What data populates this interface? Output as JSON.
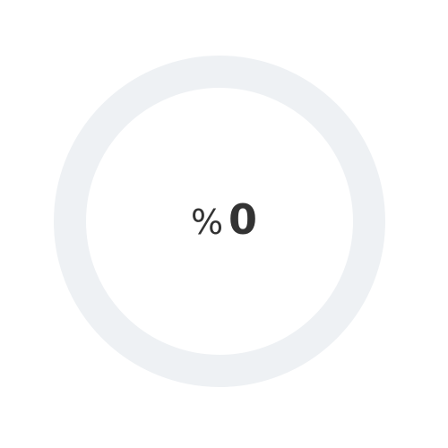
{
  "progress": {
    "fraction": 0,
    "symbol": "%",
    "value": "0"
  },
  "colors": {
    "track": "#eef1f4",
    "fill": "#3b82f6",
    "text": "#333333",
    "background": "#ffffff"
  }
}
